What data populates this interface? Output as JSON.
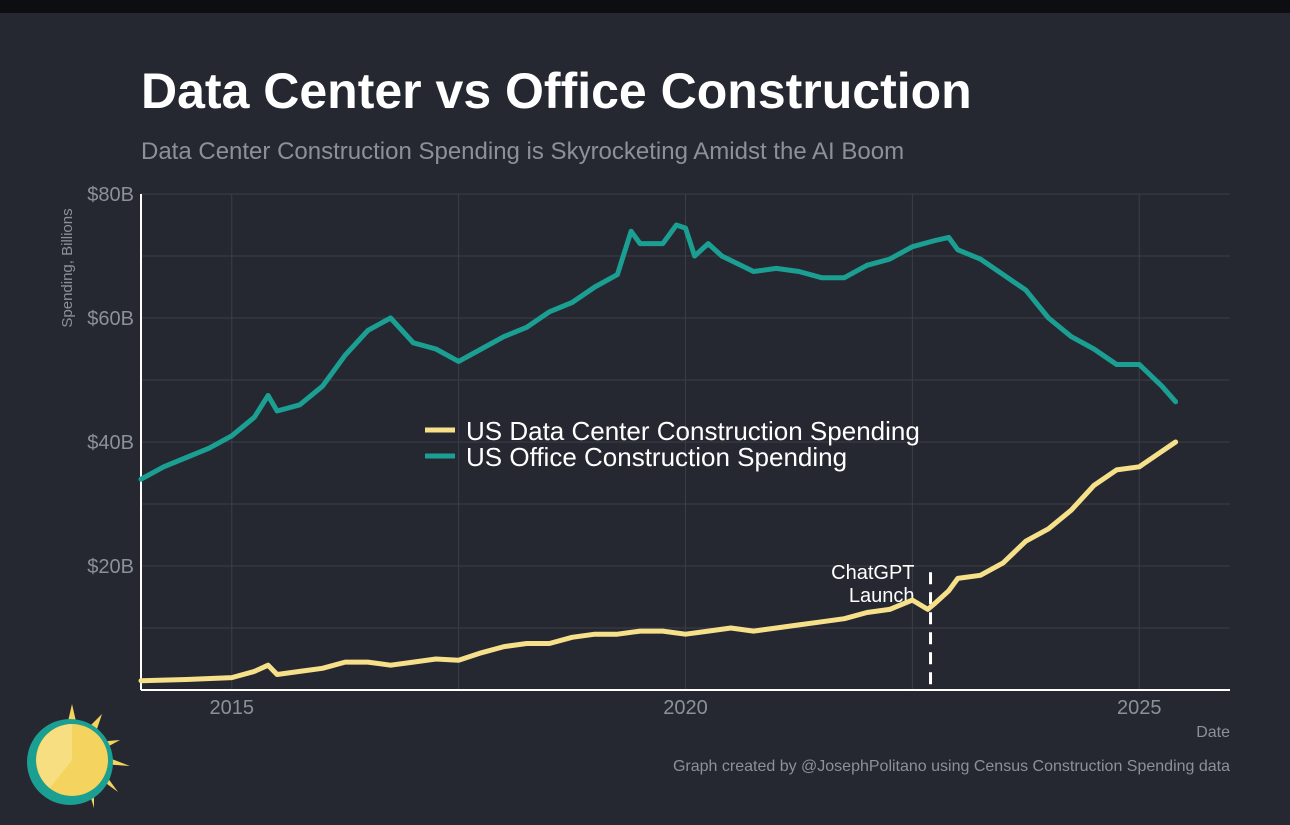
{
  "header": {
    "title": "Data Center vs Office Construction",
    "subtitle": "Data Center Construction Spending is Skyrocketing Amidst the AI Boom"
  },
  "footer": {
    "credit": "Graph created by @JosephPolitano using Census Construction Spending data"
  },
  "colors": {
    "background": "#252830",
    "data_center": "#f7e08a",
    "office": "#1a9f92",
    "grid": "#3a3e47",
    "text_muted": "#8c9099"
  },
  "logo": {
    "icon": "sun-icon"
  },
  "chart_data": {
    "type": "line",
    "x_unit": "year",
    "xlabel": "Date",
    "ylabel": "Spending, Billions",
    "xlim": [
      2014.0,
      2026.0
    ],
    "ylim": [
      0,
      80
    ],
    "x_ticks": [
      2015,
      2020,
      2025
    ],
    "y_ticks": [
      20,
      40,
      60,
      80
    ],
    "y_tick_labels": [
      "$20B",
      "$40B",
      "$60B",
      "$80B"
    ],
    "grid": true,
    "legend_position": "center",
    "series": [
      {
        "name": "US Data Center Construction Spending",
        "color": "#f7e08a",
        "x": [
          2014.0,
          2014.5,
          2015.0,
          2015.25,
          2015.4,
          2015.5,
          2015.75,
          2016.0,
          2016.25,
          2016.5,
          2016.75,
          2017.0,
          2017.25,
          2017.5,
          2017.75,
          2018.0,
          2018.25,
          2018.5,
          2018.75,
          2019.0,
          2019.25,
          2019.5,
          2019.75,
          2020.0,
          2020.25,
          2020.5,
          2020.75,
          2021.0,
          2021.25,
          2021.5,
          2021.75,
          2022.0,
          2022.25,
          2022.5,
          2022.67,
          2022.75,
          2022.9,
          2023.0,
          2023.25,
          2023.5,
          2023.75,
          2024.0,
          2024.25,
          2024.5,
          2024.75,
          2025.0,
          2025.25,
          2025.4
        ],
        "values": [
          1.5,
          1.7,
          2.0,
          3.0,
          4.0,
          2.5,
          3.0,
          3.5,
          4.5,
          4.5,
          4.0,
          4.5,
          5.0,
          4.8,
          6.0,
          7.0,
          7.5,
          7.5,
          8.5,
          9.0,
          9.0,
          9.5,
          9.5,
          9.0,
          9.5,
          10.0,
          9.5,
          10.0,
          10.5,
          11.0,
          11.5,
          12.5,
          13.0,
          14.5,
          13.0,
          14.0,
          16.0,
          18.0,
          18.5,
          20.5,
          24.0,
          26.0,
          29.0,
          33.0,
          35.5,
          36.0,
          38.5,
          40.0
        ]
      },
      {
        "name": "US Office Construction Spending",
        "color": "#1a9f92",
        "x": [
          2014.0,
          2014.25,
          2014.5,
          2014.75,
          2015.0,
          2015.25,
          2015.4,
          2015.5,
          2015.75,
          2016.0,
          2016.25,
          2016.5,
          2016.75,
          2017.0,
          2017.25,
          2017.5,
          2017.75,
          2018.0,
          2018.25,
          2018.5,
          2018.75,
          2019.0,
          2019.25,
          2019.4,
          2019.5,
          2019.75,
          2019.9,
          2020.0,
          2020.1,
          2020.25,
          2020.4,
          2020.75,
          2021.0,
          2021.25,
          2021.5,
          2021.75,
          2022.0,
          2022.25,
          2022.5,
          2022.75,
          2022.9,
          2023.0,
          2023.25,
          2023.5,
          2023.75,
          2024.0,
          2024.25,
          2024.5,
          2024.75,
          2025.0,
          2025.25,
          2025.4
        ],
        "values": [
          34.0,
          36.0,
          37.5,
          39.0,
          41.0,
          44.0,
          47.5,
          45.0,
          46.0,
          49.0,
          54.0,
          58.0,
          60.0,
          56.0,
          55.0,
          53.0,
          55.0,
          57.0,
          58.5,
          61.0,
          62.5,
          65.0,
          67.0,
          74.0,
          72.0,
          72.0,
          75.0,
          74.5,
          70.0,
          72.0,
          70.0,
          67.5,
          68.0,
          67.5,
          66.5,
          66.5,
          68.5,
          69.5,
          71.5,
          72.5,
          73.0,
          71.0,
          69.5,
          67.0,
          64.5,
          60.0,
          57.0,
          55.0,
          52.5,
          52.5,
          49.0,
          46.5
        ]
      }
    ],
    "annotations": [
      {
        "x": 2022.7,
        "lines": [
          "ChatGPT",
          "Launch"
        ],
        "style": "dashed-vertical"
      }
    ]
  }
}
